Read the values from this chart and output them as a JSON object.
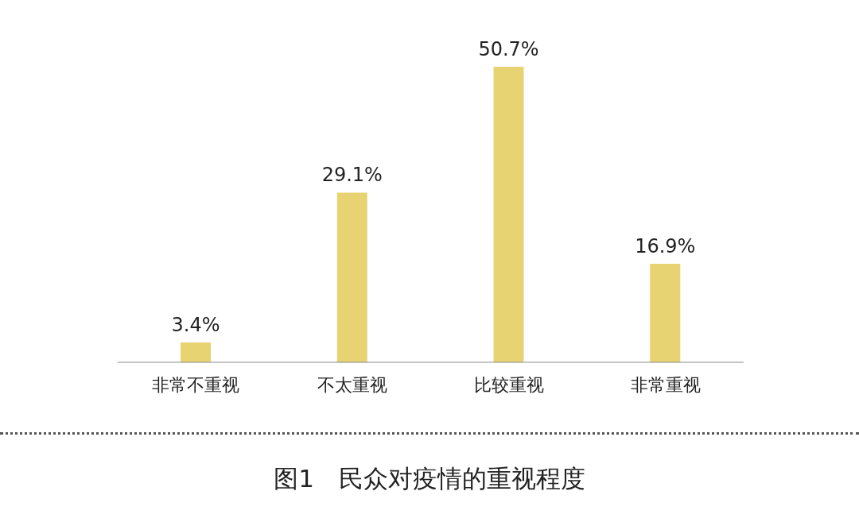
{
  "chart_data": {
    "type": "bar",
    "title": "图1　民众对疫情的重视程度",
    "categories": [
      "非常不重视",
      "不太重视",
      "比较重视",
      "非常重视"
    ],
    "values": [
      3.4,
      29.1,
      50.7,
      16.9
    ],
    "value_labels": [
      "3.4%",
      "29.1%",
      "50.7%",
      "16.9%"
    ],
    "color": "#e8d373"
  }
}
